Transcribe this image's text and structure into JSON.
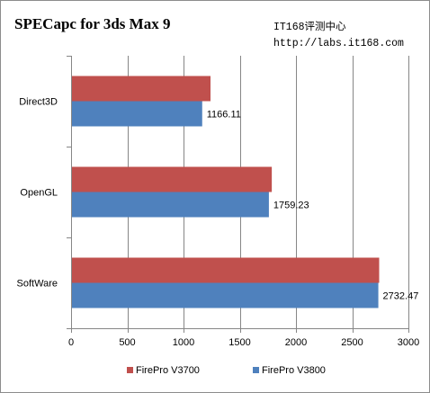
{
  "chart_data": {
    "type": "bar",
    "orientation": "horizontal",
    "title": "SPECapc for 3ds Max 9",
    "watermark": [
      "IT168评测中心",
      "http://labs.it168.com"
    ],
    "categories": [
      "Direct3D",
      "OpenGL",
      "SoftWare"
    ],
    "series": [
      {
        "name": "FirePro V3700",
        "color": "#c0504d",
        "values": [
          1240,
          1785,
          2740
        ]
      },
      {
        "name": "FirePro V3800",
        "color": "#4f81bd",
        "values": [
          1166.11,
          1759.23,
          2732.47
        ]
      }
    ],
    "data_labels": {
      "FirePro V3800": [
        "1166.11",
        "1759.23",
        "2732.47"
      ]
    },
    "xlim": [
      0,
      3000
    ],
    "xticks": [
      0,
      500,
      1000,
      1500,
      2000,
      2500,
      3000
    ],
    "grid": true,
    "legend": "bottom"
  }
}
